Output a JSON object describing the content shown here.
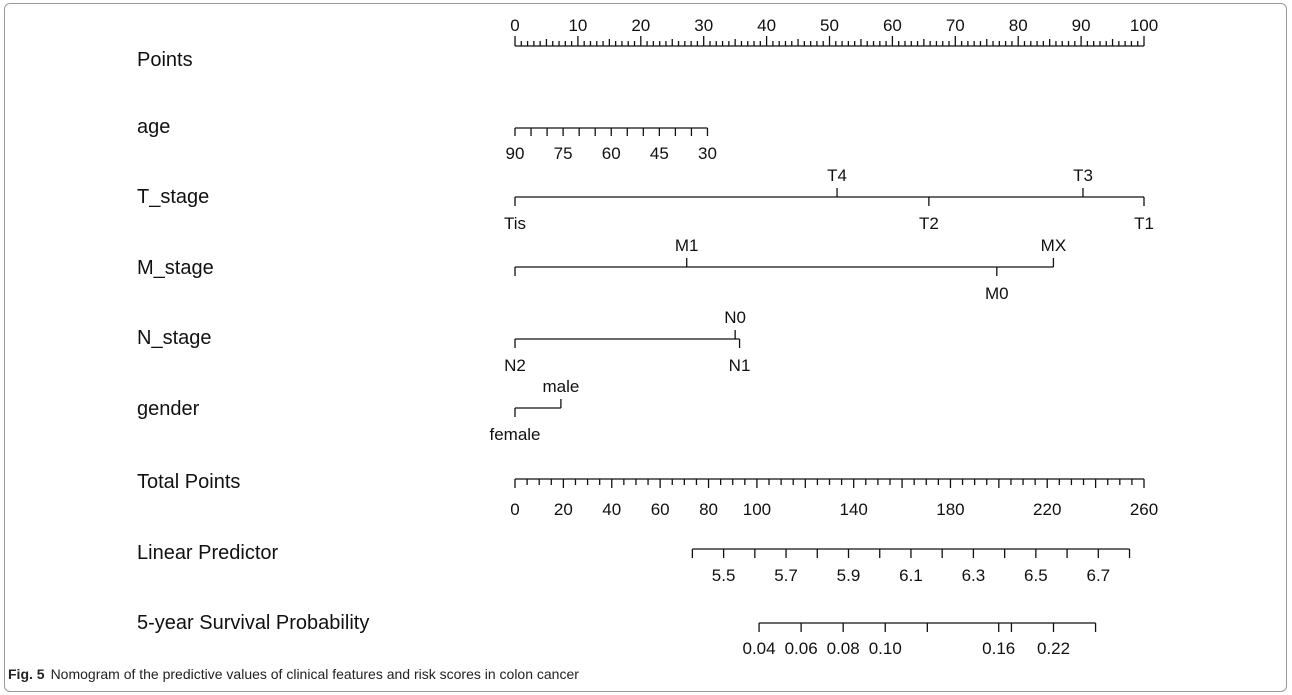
{
  "chart_data": {
    "type": "nomogram",
    "title": "",
    "rows": [
      {
        "label": "Points",
        "scale": {
          "min": 0,
          "max": 100,
          "minor_step": 1,
          "label_values": [
            0,
            10,
            20,
            30,
            40,
            50,
            60,
            70,
            80,
            90,
            100
          ]
        }
      },
      {
        "label": "age",
        "scale": {
          "ticks": [
            90,
            85,
            80,
            75,
            70,
            65,
            60,
            55,
            50,
            45,
            40,
            35,
            30
          ],
          "label_values": [
            90,
            75,
            60,
            45,
            30
          ],
          "points_at_90": 0,
          "points_at_30": 30.6
        }
      },
      {
        "label": "T_stage",
        "categories": [
          {
            "name": "Tis",
            "points": 0,
            "label_pos": "below"
          },
          {
            "name": "T4",
            "points": 51.2,
            "label_pos": "above"
          },
          {
            "name": "T2",
            "points": 65.8,
            "label_pos": "below"
          },
          {
            "name": "T3",
            "points": 90.3,
            "label_pos": "above"
          },
          {
            "name": "T1",
            "points": 100,
            "label_pos": "below"
          }
        ]
      },
      {
        "label": "M_stage",
        "categories": [
          {
            "name": "M1",
            "points": 27.3,
            "label_pos": "above"
          },
          {
            "name": "M0",
            "points": 76.6,
            "label_pos": "below"
          },
          {
            "name": "MX",
            "points": 85.6,
            "label_pos": "above"
          }
        ]
      },
      {
        "label": "N_stage",
        "categories": [
          {
            "name": "N2",
            "points": 0,
            "label_pos": "below"
          },
          {
            "name": "N0",
            "points": 35.0,
            "label_pos": "above"
          },
          {
            "name": "N1",
            "points": 35.7,
            "label_pos": "below"
          }
        ]
      },
      {
        "label": "gender",
        "categories": [
          {
            "name": "female",
            "points": 0,
            "label_pos": "below"
          },
          {
            "name": "male",
            "points": 7.3,
            "label_pos": "above"
          }
        ]
      },
      {
        "label": "Total Points",
        "scale": {
          "min": 0,
          "max": 260,
          "minor_step": 5,
          "label_values": [
            0,
            20,
            40,
            60,
            80,
            100,
            140,
            180,
            220,
            260
          ]
        }
      },
      {
        "label": "Linear Predictor",
        "scale": {
          "min": 5.4,
          "max": 6.8,
          "step": 0.1,
          "label_values": [
            5.5,
            5.7,
            5.9,
            6.1,
            6.3,
            6.5,
            6.7
          ],
          "points_at_min": 28.2,
          "points_at_max": 97.7
        }
      },
      {
        "label": "5-year Survival Probability",
        "scale": {
          "ticks": [
            0.04,
            0.06,
            0.08,
            0.1,
            0.13,
            0.16,
            0.19,
            0.22,
            0.24
          ],
          "label_values": [
            "0.04",
            "0.06",
            "0.08",
            "0.10",
            "0.16",
            "0.22"
          ],
          "points_at_first": 38.8,
          "points_at_last": 92.3,
          "unlabeled_tick_points": 76.9
        }
      }
    ]
  },
  "caption": {
    "fig_label": "Fig. 5",
    "text": "Nomogram of the predictive values of clinical features and risk scores in colon cancer"
  }
}
